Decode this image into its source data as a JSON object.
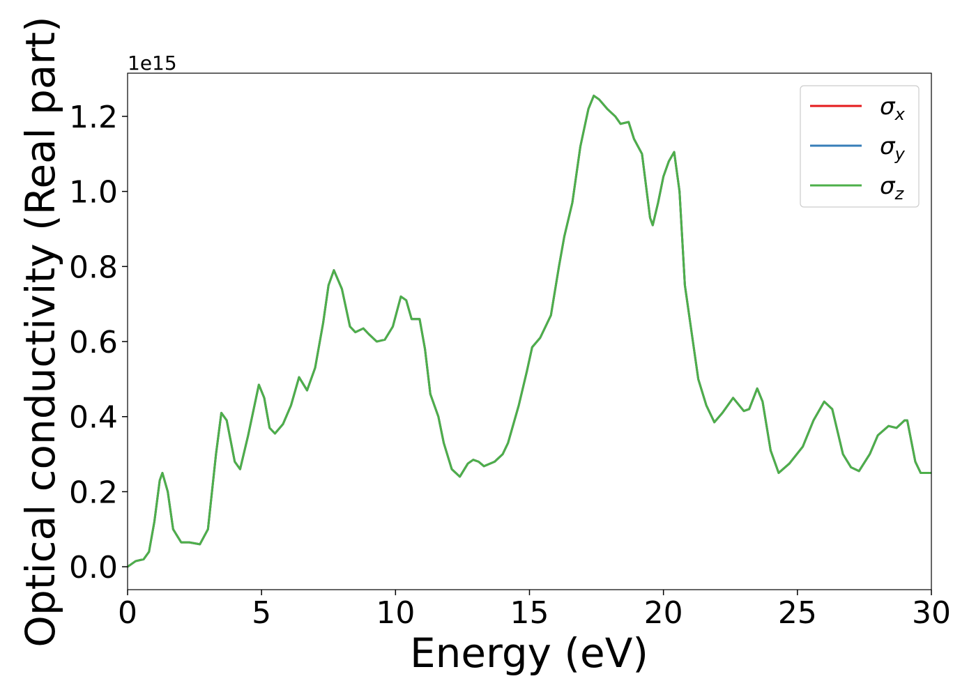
{
  "chart_data": {
    "type": "line",
    "xlabel": "Energy (eV)",
    "ylabel": "Optical conductivity (Real part)",
    "offset_text": "1e15",
    "legend": "upper right",
    "xlim": [
      0,
      30
    ],
    "ylim": [
      -0.061,
      1.315
    ],
    "xticks": [
      0,
      5,
      10,
      15,
      20,
      25,
      30
    ],
    "yticks": [
      {
        "value": 0,
        "label": "0.0"
      },
      0.2,
      0.4,
      0.6,
      0.8,
      {
        "value": 1,
        "label": "1.0"
      },
      1.2
    ],
    "x": [
      0,
      0.3,
      0.6,
      0.8,
      1.0,
      1.2,
      1.3,
      1.5,
      1.7,
      2.0,
      2.3,
      2.7,
      3.0,
      3.3,
      3.5,
      3.7,
      4.0,
      4.2,
      4.5,
      4.9,
      5.1,
      5.3,
      5.5,
      5.8,
      6.1,
      6.4,
      6.7,
      7.0,
      7.3,
      7.5,
      7.7,
      8.0,
      8.3,
      8.5,
      8.8,
      9.0,
      9.3,
      9.6,
      9.9,
      10.2,
      10.4,
      10.6,
      10.9,
      11.1,
      11.3,
      11.6,
      11.8,
      12.1,
      12.4,
      12.7,
      12.9,
      13.1,
      13.3,
      13.7,
      14.0,
      14.2,
      14.6,
      14.9,
      15.1,
      15.4,
      15.8,
      16.1,
      16.3,
      16.6,
      16.9,
      17.2,
      17.4,
      17.6,
      17.9,
      18.2,
      18.4,
      18.7,
      18.9,
      19.2,
      19.5,
      19.6,
      19.8,
      20.0,
      20.2,
      20.4,
      20.6,
      20.8,
      21.1,
      21.3,
      21.6,
      21.9,
      22.2,
      22.6,
      23.0,
      23.2,
      23.5,
      23.7,
      24.0,
      24.3,
      24.7,
      25.2,
      25.6,
      26.0,
      26.3,
      26.7,
      27.0,
      27.3,
      27.7,
      28.0,
      28.4,
      28.7,
      29.0,
      29.1,
      29.4,
      29.6,
      30.0
    ],
    "series": [
      {
        "name": "σx",
        "color": "#e41a1c",
        "values": [
          0,
          0.015,
          0.02,
          0.04,
          0.12,
          0.23,
          0.25,
          0.2,
          0.1,
          0.065,
          0.065,
          0.06,
          0.1,
          0.3,
          0.41,
          0.39,
          0.28,
          0.26,
          0.35,
          0.485,
          0.45,
          0.37,
          0.355,
          0.38,
          0.43,
          0.505,
          0.47,
          0.53,
          0.65,
          0.75,
          0.79,
          0.74,
          0.64,
          0.625,
          0.635,
          0.62,
          0.6,
          0.605,
          0.64,
          0.72,
          0.71,
          0.66,
          0.66,
          0.58,
          0.46,
          0.4,
          0.33,
          0.26,
          0.24,
          0.275,
          0.285,
          0.28,
          0.268,
          0.28,
          0.3,
          0.33,
          0.43,
          0.52,
          0.585,
          0.61,
          0.67,
          0.8,
          0.88,
          0.97,
          1.12,
          1.22,
          1.255,
          1.245,
          1.22,
          1.2,
          1.18,
          1.185,
          1.14,
          1.1,
          0.93,
          0.91,
          0.97,
          1.04,
          1.08,
          1.105,
          1.0,
          0.75,
          0.6,
          0.5,
          0.43,
          0.385,
          0.41,
          0.45,
          0.415,
          0.42,
          0.475,
          0.44,
          0.31,
          0.25,
          0.275,
          0.32,
          0.39,
          0.44,
          0.42,
          0.3,
          0.265,
          0.255,
          0.3,
          0.35,
          0.375,
          0.37,
          0.39,
          0.39,
          0.28,
          0.25,
          0.25
        ]
      },
      {
        "name": "σy",
        "color": "#377eb8",
        "values": [
          0,
          0.015,
          0.02,
          0.04,
          0.12,
          0.23,
          0.25,
          0.2,
          0.1,
          0.065,
          0.065,
          0.06,
          0.1,
          0.3,
          0.41,
          0.39,
          0.28,
          0.26,
          0.35,
          0.485,
          0.45,
          0.37,
          0.355,
          0.38,
          0.43,
          0.505,
          0.47,
          0.53,
          0.65,
          0.75,
          0.79,
          0.74,
          0.64,
          0.625,
          0.635,
          0.62,
          0.6,
          0.605,
          0.64,
          0.72,
          0.71,
          0.66,
          0.66,
          0.58,
          0.46,
          0.4,
          0.33,
          0.26,
          0.24,
          0.275,
          0.285,
          0.28,
          0.268,
          0.28,
          0.3,
          0.33,
          0.43,
          0.52,
          0.585,
          0.61,
          0.67,
          0.8,
          0.88,
          0.97,
          1.12,
          1.22,
          1.255,
          1.245,
          1.22,
          1.2,
          1.18,
          1.185,
          1.14,
          1.1,
          0.93,
          0.91,
          0.97,
          1.04,
          1.08,
          1.105,
          1.0,
          0.75,
          0.6,
          0.5,
          0.43,
          0.385,
          0.41,
          0.45,
          0.415,
          0.42,
          0.475,
          0.44,
          0.31,
          0.25,
          0.275,
          0.32,
          0.39,
          0.44,
          0.42,
          0.3,
          0.265,
          0.255,
          0.3,
          0.35,
          0.375,
          0.37,
          0.39,
          0.39,
          0.28,
          0.25,
          0.25
        ]
      },
      {
        "name": "σz",
        "color": "#4daf4a",
        "values": [
          0,
          0.015,
          0.02,
          0.04,
          0.12,
          0.23,
          0.25,
          0.2,
          0.1,
          0.065,
          0.065,
          0.06,
          0.1,
          0.3,
          0.41,
          0.39,
          0.28,
          0.26,
          0.35,
          0.485,
          0.45,
          0.37,
          0.355,
          0.38,
          0.43,
          0.505,
          0.47,
          0.53,
          0.65,
          0.75,
          0.79,
          0.74,
          0.64,
          0.625,
          0.635,
          0.62,
          0.6,
          0.605,
          0.64,
          0.72,
          0.71,
          0.66,
          0.66,
          0.58,
          0.46,
          0.4,
          0.33,
          0.26,
          0.24,
          0.275,
          0.285,
          0.28,
          0.268,
          0.28,
          0.3,
          0.33,
          0.43,
          0.52,
          0.585,
          0.61,
          0.67,
          0.8,
          0.88,
          0.97,
          1.12,
          1.22,
          1.255,
          1.245,
          1.22,
          1.2,
          1.18,
          1.185,
          1.14,
          1.1,
          0.93,
          0.91,
          0.97,
          1.04,
          1.08,
          1.105,
          1.0,
          0.75,
          0.6,
          0.5,
          0.43,
          0.385,
          0.41,
          0.45,
          0.415,
          0.42,
          0.475,
          0.44,
          0.31,
          0.25,
          0.275,
          0.32,
          0.39,
          0.44,
          0.42,
          0.3,
          0.265,
          0.255,
          0.3,
          0.35,
          0.375,
          0.37,
          0.39,
          0.39,
          0.28,
          0.25,
          0.25
        ]
      }
    ]
  }
}
